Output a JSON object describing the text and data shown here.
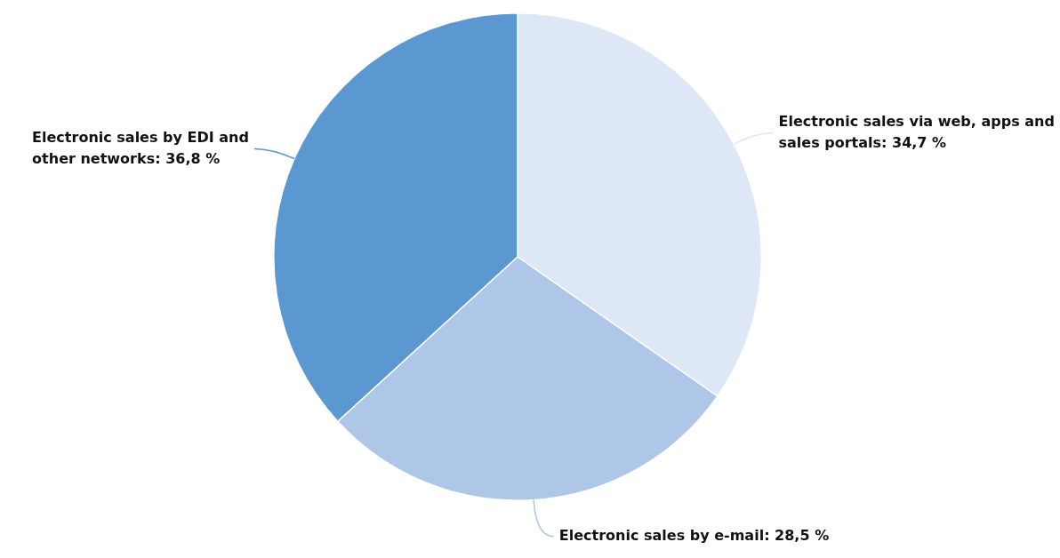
{
  "chart_data": {
    "type": "pie",
    "categories": [
      "Electronic sales via web, apps and sales portals",
      "Electronic sales by e-mail",
      "Electronic sales by EDI and other networks"
    ],
    "values": [
      34.7,
      28.5,
      36.8
    ],
    "value_labels": [
      "34,7 %",
      "28,5 %",
      "36,8 %"
    ],
    "colors": [
      "#dde7f5",
      "#aec6e8",
      "#5b97d1"
    ],
    "legend": false
  }
}
